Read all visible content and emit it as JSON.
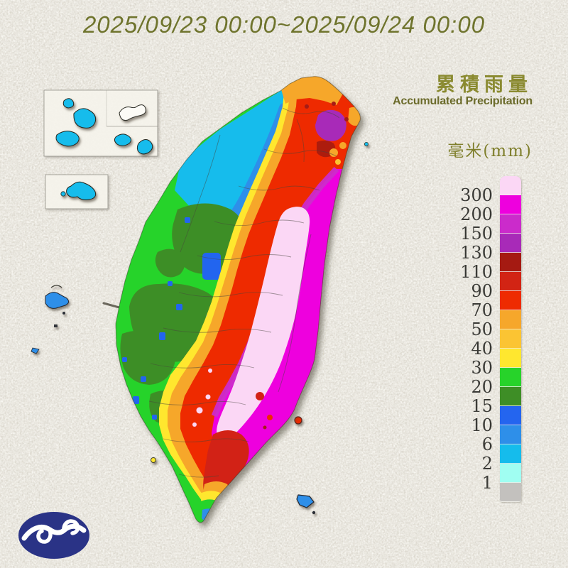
{
  "title": "2025/09/23 00:00~2025/09/24 00:00",
  "legend": {
    "title_zh": "累積雨量",
    "title_en": "Accumulated Precipitation",
    "unit_label": "毫米(mm)",
    "scale": [
      {
        "label": "",
        "color": "pink"
      },
      {
        "label": "300",
        "color": "magenta"
      },
      {
        "label": "200",
        "color": "orchid"
      },
      {
        "label": "150",
        "color": "purple"
      },
      {
        "label": "130",
        "color": "dark_red"
      },
      {
        "label": "110",
        "color": "red"
      },
      {
        "label": "90",
        "color": "red_orange"
      },
      {
        "label": "70",
        "color": "orange"
      },
      {
        "label": "50",
        "color": "amber"
      },
      {
        "label": "40",
        "color": "yellow"
      },
      {
        "label": "30",
        "color": "green"
      },
      {
        "label": "20",
        "color": "dark_green"
      },
      {
        "label": "15",
        "color": "blue"
      },
      {
        "label": "10",
        "color": "mid_blue"
      },
      {
        "label": "6",
        "color": "cyan"
      },
      {
        "label": "2",
        "color": "pale_cyan"
      },
      {
        "label": "1",
        "color": "gray"
      }
    ]
  },
  "colors": {
    "pink": "#FBD7F5",
    "magenta": "#EE00DE",
    "orchid": "#CB2BCB",
    "purple": "#A82AB8",
    "dark_red": "#A51A12",
    "red": "#D22414",
    "red_orange": "#EE2B01",
    "orange": "#F6A72B",
    "amber": "#FBC433",
    "yellow": "#FFE72F",
    "green": "#27D32A",
    "dark_green": "#3E8E26",
    "blue": "#2465EF",
    "mid_blue": "#2E8FE9",
    "cyan": "#15BCEC",
    "pale_cyan": "#A0FEF2",
    "gray": "#C3C1BE",
    "title_text": "#6F742D",
    "legend_text": "#8A8A30",
    "logo_blue": "#2A3386",
    "logo_glyph": "#FFFFFF"
  }
}
